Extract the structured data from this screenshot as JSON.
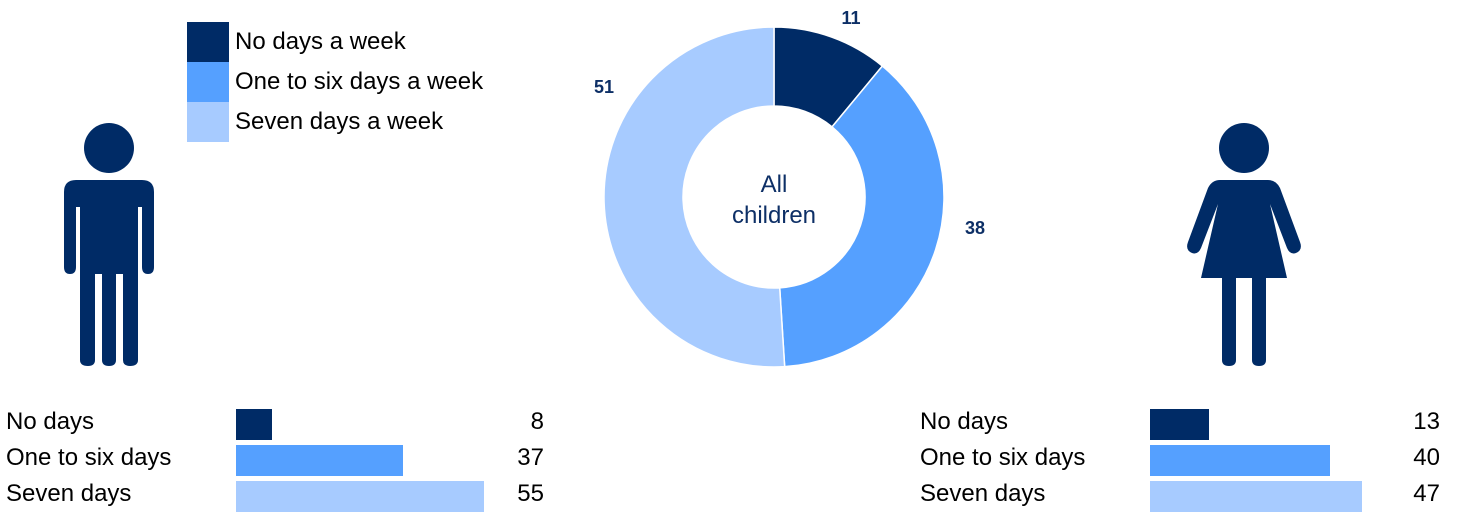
{
  "colors": {
    "no_days": "#002B66",
    "one_to_six": "#55A0FF",
    "seven": "#A7CBFF",
    "figure": "#002B66",
    "label_dark": "#0D2F66"
  },
  "legend": [
    {
      "label": "No days a week",
      "color_key": "no_days"
    },
    {
      "label": "One to six days a week",
      "color_key": "one_to_six"
    },
    {
      "label": "Seven days a week",
      "color_key": "seven"
    }
  ],
  "donut": {
    "center_line1": "All",
    "center_line2": "children",
    "labels": [
      "11",
      "38",
      "51"
    ]
  },
  "icons": {
    "male": "male-person-icon",
    "female": "female-person-icon"
  },
  "boys": {
    "rows": [
      {
        "label": "No days",
        "value": "8"
      },
      {
        "label": "One to six days",
        "value": "37"
      },
      {
        "label": "Seven days",
        "value": "55"
      }
    ]
  },
  "girls": {
    "rows": [
      {
        "label": "No days",
        "value": "13"
      },
      {
        "label": "One to six days",
        "value": "40"
      },
      {
        "label": "Seven days",
        "value": "47"
      }
    ]
  },
  "chart_data": [
    {
      "type": "pie",
      "title": "",
      "categories": [
        "No days a week",
        "One to six days a week",
        "Seven days a week"
      ],
      "values": [
        11,
        38,
        51
      ],
      "center_label": "All children",
      "legend": "top-left"
    },
    {
      "type": "bar",
      "title": "",
      "orientation": "horizontal",
      "categories": [
        "No days",
        "One to six days",
        "Seven days"
      ],
      "values": [
        8,
        37,
        55
      ],
      "xlim": [
        0,
        55
      ]
    },
    {
      "type": "bar",
      "title": "",
      "orientation": "horizontal",
      "categories": [
        "No days",
        "One to six days",
        "Seven days"
      ],
      "values": [
        13,
        40,
        47
      ],
      "xlim": [
        0,
        55
      ]
    }
  ]
}
